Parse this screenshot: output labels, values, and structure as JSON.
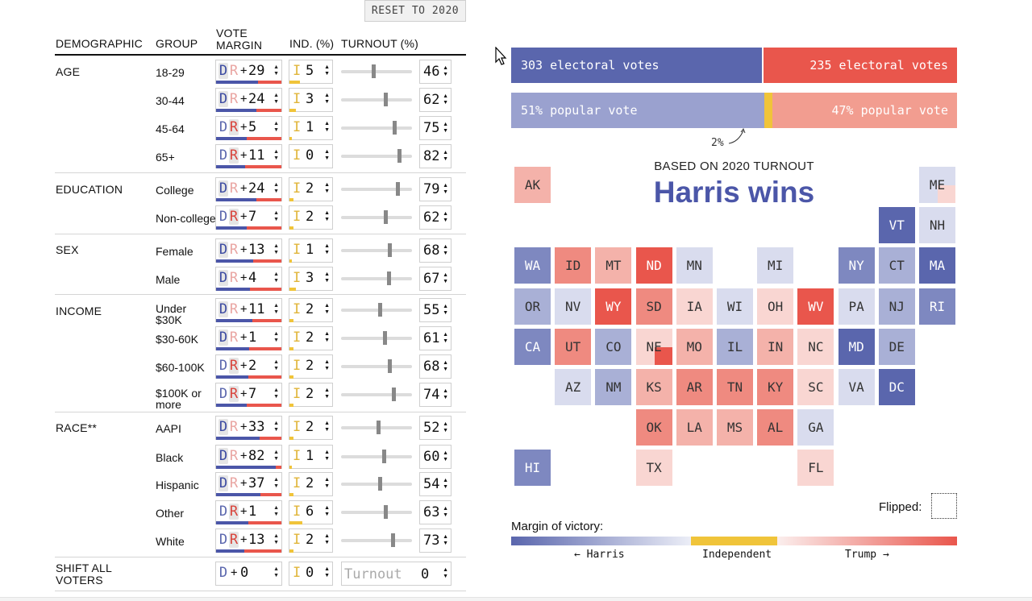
{
  "reset_label": "RESET TO 2020",
  "headers": {
    "demographic": "DEMOGRAPHIC",
    "group": "GROUP",
    "vote_margin": "VOTE MARGIN",
    "ind": "IND. (%)",
    "turnout": "TURNOUT (%)"
  },
  "letters": {
    "d": "D",
    "r": "R",
    "i": "I",
    "plus": "+"
  },
  "categories": {
    "age": "AGE",
    "education": "EDUCATION",
    "sex": "SEX",
    "income": "INCOME",
    "race": "RACE**",
    "shift": "SHIFT ALL VOTERS"
  },
  "rows": [
    {
      "group": "18-29",
      "party": "D",
      "margin": "29",
      "ind": "5",
      "turnout": "46",
      "slider": 0.46
    },
    {
      "group": "30-44",
      "party": "D",
      "margin": "24",
      "ind": "3",
      "turnout": "62",
      "slider": 0.62
    },
    {
      "group": "45-64",
      "party": "R",
      "margin": "5",
      "ind": "1",
      "turnout": "75",
      "slider": 0.75
    },
    {
      "group": "65+",
      "party": "R",
      "margin": "11",
      "ind": "0",
      "turnout": "82",
      "slider": 0.82
    },
    {
      "group": "College",
      "party": "D",
      "margin": "24",
      "ind": "2",
      "turnout": "79",
      "slider": 0.79
    },
    {
      "group": "Non-college",
      "party": "R",
      "margin": "7",
      "ind": "2",
      "turnout": "62",
      "slider": 0.62
    },
    {
      "group": "Female",
      "party": "D",
      "margin": "13",
      "ind": "1",
      "turnout": "68",
      "slider": 0.68
    },
    {
      "group": "Male",
      "party": "D",
      "margin": "4",
      "ind": "3",
      "turnout": "67",
      "slider": 0.67
    },
    {
      "group": "Under $30K",
      "party": "D",
      "margin": "11",
      "ind": "2",
      "turnout": "55",
      "slider": 0.55
    },
    {
      "group": "$30-60K",
      "party": "D",
      "margin": "1",
      "ind": "2",
      "turnout": "61",
      "slider": 0.61
    },
    {
      "group": "$60-100K",
      "party": "R",
      "margin": "2",
      "ind": "2",
      "turnout": "68",
      "slider": 0.68
    },
    {
      "group": "$100K or more",
      "party": "R",
      "margin": "7",
      "ind": "2",
      "turnout": "74",
      "slider": 0.74
    },
    {
      "group": "AAPI",
      "party": "D",
      "margin": "33",
      "ind": "2",
      "turnout": "52",
      "slider": 0.52
    },
    {
      "group": "Black",
      "party": "D",
      "margin": "82",
      "ind": "1",
      "turnout": "60",
      "slider": 0.6
    },
    {
      "group": "Hispanic",
      "party": "D",
      "margin": "37",
      "ind": "2",
      "turnout": "54",
      "slider": 0.54
    },
    {
      "group": "Other",
      "party": "R",
      "margin": "1",
      "ind": "6",
      "turnout": "63",
      "slider": 0.63
    },
    {
      "group": "White",
      "party": "R",
      "margin": "13",
      "ind": "2",
      "turnout": "73",
      "slider": 0.73
    }
  ],
  "shift_all": {
    "margin": "0",
    "ind": "0",
    "turnout_placeholder": "Turnout",
    "turnout": "0"
  },
  "results": {
    "dem_ev": "303 electoral votes",
    "rep_ev": "235 electoral votes",
    "dem_ev_share": 0.563,
    "dem_pop": "51% popular vote",
    "rep_pop": "47% popular vote",
    "ind_pop": "2%",
    "dem_pop_share": 0.51,
    "ind_pop_share": 0.02
  },
  "headline": {
    "subtitle": "BASED ON 2020 TURNOUT",
    "title": "Harris wins"
  },
  "legend": {
    "flipped": "Flipped:",
    "margin_title": "Margin of victory:",
    "harris": "← Harris",
    "independent": "Independent",
    "trump": "Trump →"
  },
  "colors": {
    "dem_dark": "#5a66ad",
    "dem_mid": "#7e88c0",
    "dem_light": "#a9b0d6",
    "dem_pale": "#d9dcee",
    "rep_dark": "#e9564c",
    "rep_mid": "#ef8a80",
    "rep_light": "#f4b2aa",
    "rep_pale": "#f9d6d2",
    "independent": "#f0c43a",
    "dem_bar": "#5a66ad",
    "rep_bar": "#e9564c",
    "dem_pop": "#9aa1cf",
    "rep_pop": "#f29d90"
  },
  "states": [
    {
      "abbr": "AK",
      "color": "rep_light"
    },
    {
      "abbr": "ME",
      "color": "dem_pale"
    },
    {
      "abbr": "VT",
      "color": "dem_dark"
    },
    {
      "abbr": "NH",
      "color": "dem_pale"
    },
    {
      "abbr": "WA",
      "color": "dem_mid"
    },
    {
      "abbr": "ID",
      "color": "rep_mid"
    },
    {
      "abbr": "MT",
      "color": "rep_light"
    },
    {
      "abbr": "ND",
      "color": "rep_dark"
    },
    {
      "abbr": "MN",
      "color": "dem_pale"
    },
    {
      "abbr": "MI",
      "color": "dem_pale"
    },
    {
      "abbr": "NY",
      "color": "dem_mid"
    },
    {
      "abbr": "CT",
      "color": "dem_light"
    },
    {
      "abbr": "MA",
      "color": "dem_dark"
    },
    {
      "abbr": "OR",
      "color": "dem_light"
    },
    {
      "abbr": "NV",
      "color": "dem_pale"
    },
    {
      "abbr": "WY",
      "color": "rep_dark"
    },
    {
      "abbr": "SD",
      "color": "rep_mid"
    },
    {
      "abbr": "IA",
      "color": "rep_pale"
    },
    {
      "abbr": "WI",
      "color": "dem_pale"
    },
    {
      "abbr": "OH",
      "color": "rep_pale"
    },
    {
      "abbr": "WV",
      "color": "rep_dark"
    },
    {
      "abbr": "PA",
      "color": "dem_pale"
    },
    {
      "abbr": "NJ",
      "color": "dem_light"
    },
    {
      "abbr": "RI",
      "color": "dem_mid"
    },
    {
      "abbr": "CA",
      "color": "dem_mid"
    },
    {
      "abbr": "UT",
      "color": "rep_mid"
    },
    {
      "abbr": "CO",
      "color": "dem_light"
    },
    {
      "abbr": "NE",
      "color": "rep_pale"
    },
    {
      "abbr": "MO",
      "color": "rep_light"
    },
    {
      "abbr": "IL",
      "color": "dem_light"
    },
    {
      "abbr": "IN",
      "color": "rep_light"
    },
    {
      "abbr": "NC",
      "color": "rep_pale"
    },
    {
      "abbr": "MD",
      "color": "dem_dark"
    },
    {
      "abbr": "DE",
      "color": "dem_light"
    },
    {
      "abbr": "AZ",
      "color": "dem_pale"
    },
    {
      "abbr": "NM",
      "color": "dem_light"
    },
    {
      "abbr": "KS",
      "color": "rep_light"
    },
    {
      "abbr": "AR",
      "color": "rep_mid"
    },
    {
      "abbr": "TN",
      "color": "rep_mid"
    },
    {
      "abbr": "KY",
      "color": "rep_mid"
    },
    {
      "abbr": "SC",
      "color": "rep_pale"
    },
    {
      "abbr": "VA",
      "color": "dem_pale"
    },
    {
      "abbr": "DC",
      "color": "dem_dark"
    },
    {
      "abbr": "OK",
      "color": "rep_mid"
    },
    {
      "abbr": "LA",
      "color": "rep_light"
    },
    {
      "abbr": "MS",
      "color": "rep_light"
    },
    {
      "abbr": "AL",
      "color": "rep_mid"
    },
    {
      "abbr": "GA",
      "color": "dem_pale"
    },
    {
      "abbr": "HI",
      "color": "dem_mid"
    },
    {
      "abbr": "TX",
      "color": "rep_pale"
    },
    {
      "abbr": "FL",
      "color": "rep_pale"
    }
  ]
}
